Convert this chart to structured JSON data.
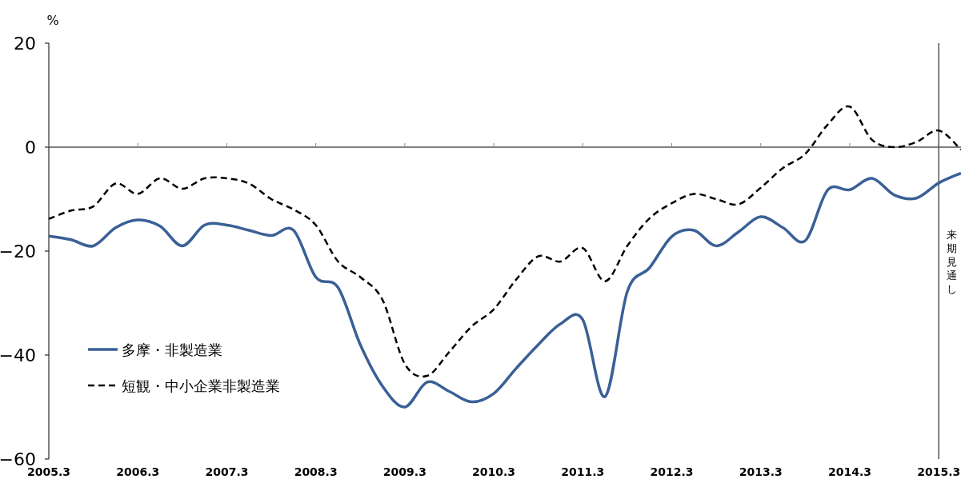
{
  "chart_data": {
    "type": "line",
    "ylabel": "%",
    "categories": [
      "2005.3",
      null,
      null,
      null,
      "2006.3",
      null,
      null,
      null,
      "2007.3",
      null,
      null,
      null,
      "2008.3",
      null,
      null,
      null,
      "2009.3",
      null,
      null,
      null,
      "2010.3",
      null,
      null,
      null,
      "2011.3",
      null,
      null,
      null,
      "2012.3",
      null,
      null,
      null,
      "2013.3",
      null,
      null,
      null,
      "2014.3",
      null,
      null,
      null,
      "2015.3",
      null
    ],
    "series": [
      {
        "name": "多摩・非製造業",
        "color": "#3a6096",
        "line_style": "solid",
        "values": [
          -17.1,
          -17.8,
          -19,
          -15.5,
          -14,
          -15.2,
          -19,
          -15,
          -15,
          -16,
          -17,
          -16,
          -25,
          -27,
          -38,
          -46,
          -50,
          -45.2,
          -47,
          -49,
          -47.4,
          -42.6,
          -38,
          -34,
          -33.2,
          -48,
          -27.8,
          -23.2,
          -17.2,
          -16,
          -19,
          -16.3,
          -13.4,
          -15.5,
          -18,
          -8.3,
          -8.2,
          -6,
          -9.2,
          -9.8,
          -6.9,
          -5
        ]
      },
      {
        "name": "短観・中小企業非製造業",
        "color": "#000000",
        "line_style": "dashed",
        "values": [
          -13.8,
          -12.2,
          -11.4,
          -7,
          -9,
          -6,
          -8,
          -6,
          -6,
          -7,
          -10,
          -12,
          -15,
          -22,
          -25,
          -29.4,
          -41.7,
          -44,
          -39.4,
          -34.5,
          -31.2,
          -25.5,
          -21,
          -22,
          -19.4,
          -25.8,
          -19,
          -13.7,
          -10.8,
          -9,
          -10,
          -11,
          -7.8,
          -4,
          -1.3,
          4.3,
          7.8,
          1.4,
          0,
          1,
          3.2,
          -0.5
        ]
      }
    ],
    "ylim": [
      -60,
      20
    ],
    "yticks": [
      {
        "value": -60,
        "label": "−60"
      },
      {
        "value": -40,
        "label": "−40"
      },
      {
        "value": -20,
        "label": "−20"
      },
      0,
      20
    ],
    "ref_lines": [
      {
        "axis": "x",
        "value": "2015.3",
        "label": "来期見通し",
        "color": "#555555"
      }
    ],
    "legend": "left",
    "grid": false
  }
}
